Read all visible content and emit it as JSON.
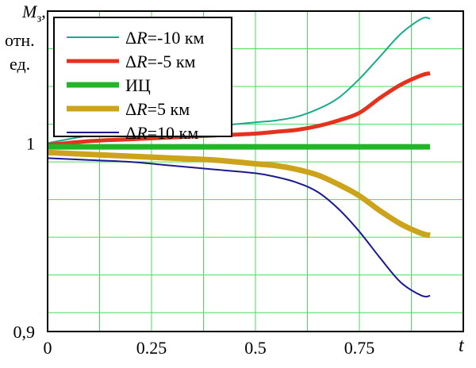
{
  "chart_data": {
    "type": "line",
    "ylabel_lines": [
      "M",
      "з",
      ",",
      "отн.",
      "ед."
    ],
    "xlabel": "t",
    "xlim": [
      0,
      1
    ],
    "ylim": [
      0.9,
      1.07
    ],
    "x_ticks": [
      {
        "value": 0,
        "label": "0"
      },
      {
        "value": 0.25,
        "label": "0.25"
      },
      {
        "value": 0.5,
        "label": "0.5"
      },
      {
        "value": 0.75,
        "label": "0.75"
      }
    ],
    "y_ticks": [
      {
        "value": 1.0,
        "label": "1"
      },
      {
        "value": 0.9,
        "label": "0,9"
      }
    ],
    "grid": true,
    "legend_position": "top-left",
    "series": [
      {
        "name_prefix": "Δ",
        "name_var": "R",
        "name_rest": "=-10 км",
        "color": "#1aab8a",
        "width": 2,
        "x": [
          0,
          0.1,
          0.2,
          0.3,
          0.4,
          0.5,
          0.55,
          0.6,
          0.65,
          0.7,
          0.75,
          0.8,
          0.85,
          0.9,
          0.92
        ],
        "y": [
          1.0,
          1.004,
          1.007,
          1.008,
          1.009,
          1.011,
          1.012,
          1.014,
          1.018,
          1.024,
          1.034,
          1.046,
          1.058,
          1.066,
          1.066
        ]
      },
      {
        "name_prefix": "Δ",
        "name_var": "R",
        "name_rest": "=-5 км",
        "color": "#e4321e",
        "width": 5,
        "x": [
          0,
          0.1,
          0.2,
          0.3,
          0.4,
          0.5,
          0.55,
          0.6,
          0.65,
          0.7,
          0.75,
          0.8,
          0.85,
          0.9,
          0.92
        ],
        "y": [
          0.999,
          1.001,
          1.002,
          1.003,
          1.004,
          1.005,
          1.006,
          1.007,
          1.009,
          1.012,
          1.016,
          1.024,
          1.031,
          1.036,
          1.037
        ]
      },
      {
        "name_prefix": "",
        "name_var": "",
        "name_rest": "ИЦ",
        "color": "#22b527",
        "width": 7,
        "x": [
          0,
          0.92
        ],
        "y": [
          0.998,
          0.998
        ]
      },
      {
        "name_prefix": "Δ",
        "name_var": "R",
        "name_rest": "=5 км",
        "color": "#cca31a",
        "width": 7,
        "x": [
          0,
          0.1,
          0.2,
          0.3,
          0.4,
          0.5,
          0.55,
          0.6,
          0.65,
          0.7,
          0.75,
          0.8,
          0.85,
          0.9,
          0.92
        ],
        "y": [
          0.995,
          0.994,
          0.993,
          0.992,
          0.991,
          0.989,
          0.988,
          0.986,
          0.983,
          0.978,
          0.972,
          0.964,
          0.957,
          0.952,
          0.951
        ]
      },
      {
        "name_prefix": "Δ",
        "name_var": "R",
        "name_rest": "=10 км",
        "color": "#1b1b8f",
        "width": 2,
        "x": [
          0,
          0.1,
          0.2,
          0.3,
          0.4,
          0.5,
          0.55,
          0.6,
          0.65,
          0.7,
          0.75,
          0.8,
          0.85,
          0.9,
          0.92
        ],
        "y": [
          0.992,
          0.991,
          0.99,
          0.988,
          0.986,
          0.984,
          0.982,
          0.979,
          0.974,
          0.965,
          0.953,
          0.939,
          0.926,
          0.919,
          0.919
        ]
      }
    ]
  }
}
